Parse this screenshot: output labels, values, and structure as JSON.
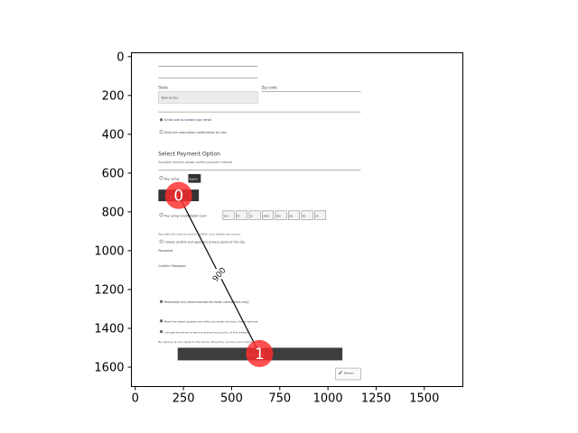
{
  "plot": {
    "xlim": [
      -20,
      1700
    ],
    "ylim": [
      1700,
      -20
    ],
    "x_ticks": [
      "0",
      "250",
      "500",
      "750",
      "1000",
      "1250",
      "1500"
    ],
    "y_ticks": [
      "0",
      "200",
      "400",
      "600",
      "800",
      "1000",
      "1200",
      "1400",
      "1600"
    ]
  },
  "screenshot": {
    "state_label": "State",
    "zip_label": "Zip code",
    "state_value": "New Jersey",
    "contact_line": "Is this sure to contact your email",
    "sms_line": "Send me reservation confirmation by sms",
    "payment_heading": "Select Payment Option",
    "payment_sub": "Available vehicles please confirm payment method",
    "option_paypal": "Pay using",
    "paypal_badge": "PayPal",
    "amazon_badge": "amazon",
    "option_card": "Pay using Credit/Debit Card",
    "card_badges": [
      "VISA",
      "MC",
      "DC",
      "AMEX",
      "DISC",
      "JCB",
      "MC",
      "CB"
    ],
    "note_line": "Pay with this card be sure to confirm your details are correct",
    "check_line": "I totally confirm and agree the privacy policy of this site.",
    "password_label": "Password",
    "confirm_label": "Confirm Password",
    "remember_line": "Remember me (recommended for faster connections only)",
    "terms_line": "Need the latest updates and offers by email and sms, this is optional",
    "agree_line": "I accept the terms of service and privacy policy of this website",
    "legal_line": "By signing up you agree to the terms, site policy, privacy and cookie policies",
    "book_button": "Book Now",
    "norton_label": "Norton"
  },
  "markers": [
    {
      "label": "0",
      "x": 225,
      "y": 715
    },
    {
      "label": "1",
      "x": 645,
      "y": 1530
    }
  ],
  "path": {
    "label": "900"
  },
  "colors": {
    "marker": "#ff2b2b",
    "button": "#3d3d3d",
    "line": "#000000"
  }
}
